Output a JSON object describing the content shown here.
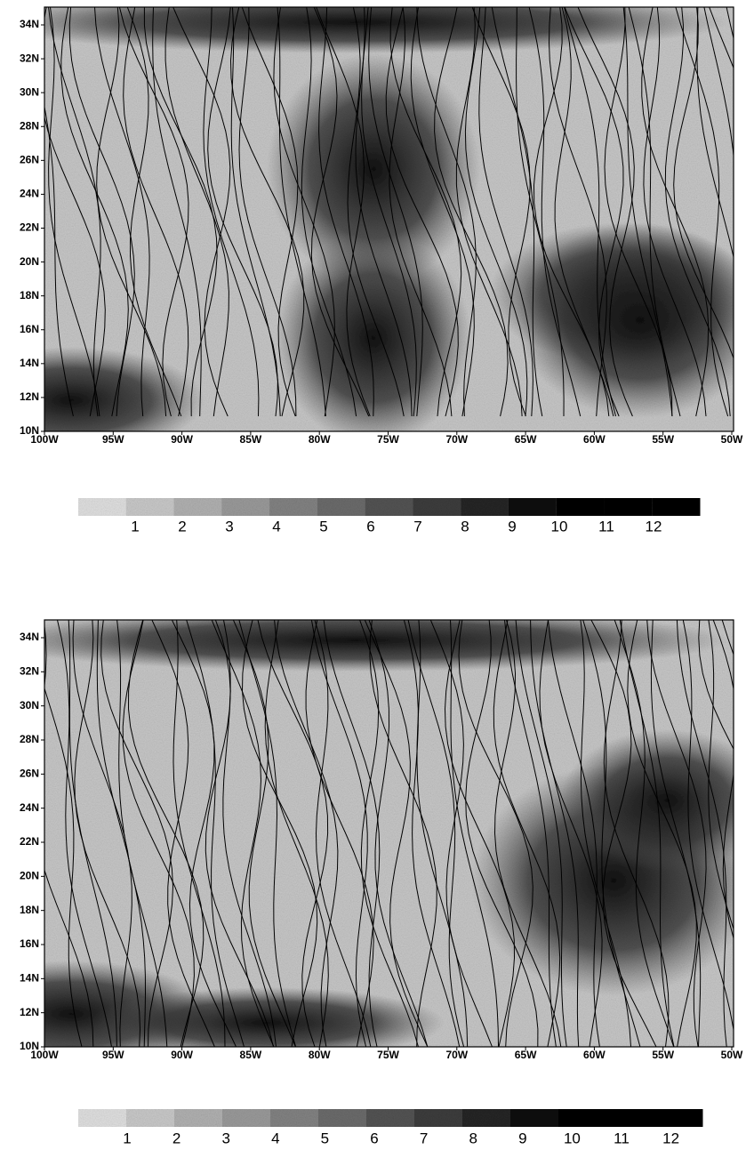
{
  "panels": [
    {
      "lat_labels": [
        "34N",
        "32N",
        "30N",
        "28N",
        "26N",
        "24N",
        "22N",
        "20N",
        "18N",
        "16N",
        "14N",
        "12N",
        "10N"
      ],
      "lon_labels": [
        "100W",
        "95W",
        "90W",
        "85W",
        "80W",
        "75W",
        "70W",
        "65W",
        "60W",
        "55W",
        "50W"
      ],
      "colorbar_labels": [
        1,
        2,
        3,
        4,
        5,
        6,
        7,
        8,
        9,
        10,
        11,
        12
      ]
    },
    {
      "lat_labels": [
        "34N",
        "32N",
        "30N",
        "28N",
        "26N",
        "24N",
        "22N",
        "20N",
        "18N",
        "16N",
        "14N",
        "12N",
        "10N"
      ],
      "lon_labels": [
        "100W",
        "95W",
        "90W",
        "85W",
        "80W",
        "75W",
        "70W",
        "65W",
        "60W",
        "55W",
        "50W"
      ],
      "colorbar_labels": [
        1,
        2,
        3,
        4,
        5,
        6,
        7,
        8,
        9,
        10,
        11,
        12
      ]
    }
  ]
}
